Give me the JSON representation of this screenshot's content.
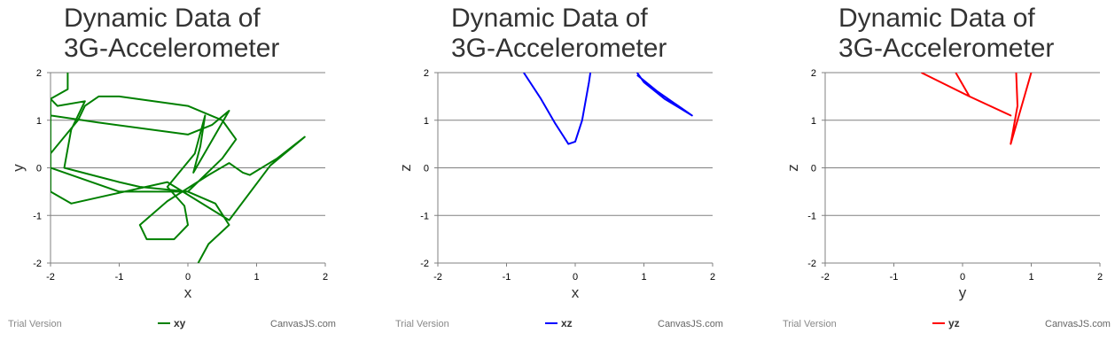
{
  "chart_data": [
    {
      "type": "line",
      "title": "Dynamic Data of 3G-Accelerometer",
      "title_lines": [
        "Dynamic Data of",
        "3G-Accelerometer"
      ],
      "xlabel": "x",
      "ylabel": "y",
      "xlim": [
        -2,
        2
      ],
      "ylim": [
        -2,
        2
      ],
      "x_ticks": [
        "-2",
        "-1",
        "0",
        "1",
        "2"
      ],
      "y_ticks": [
        "2",
        "1",
        "0",
        "-1",
        "-2"
      ],
      "grid": "horizontal",
      "legend": "bottom",
      "series": [
        {
          "name": "xy",
          "color": "#008000",
          "points": [
            [
              -1.75,
              2.0
            ],
            [
              -1.75,
              1.65
            ],
            [
              -2.0,
              1.45
            ],
            [
              -2.0,
              1.1
            ],
            [
              -1.3,
              0.95
            ],
            [
              0.0,
              0.7
            ],
            [
              0.35,
              0.9
            ],
            [
              0.6,
              1.2
            ],
            [
              0.08,
              -0.1
            ],
            [
              0.18,
              0.45
            ],
            [
              0.25,
              1.1
            ],
            [
              0.1,
              0.3
            ],
            [
              -0.3,
              -0.4
            ],
            [
              -0.05,
              -0.8
            ],
            [
              0.0,
              -1.2
            ],
            [
              -0.2,
              -1.5
            ],
            [
              -0.6,
              -1.5
            ],
            [
              -0.7,
              -1.2
            ],
            [
              -0.3,
              -0.7
            ],
            [
              0.3,
              -0.15
            ],
            [
              0.6,
              0.1
            ],
            [
              0.8,
              -0.1
            ],
            [
              0.9,
              -0.15
            ],
            [
              1.3,
              0.2
            ],
            [
              1.7,
              0.65
            ],
            [
              1.2,
              0.05
            ],
            [
              0.6,
              -1.1
            ],
            [
              -0.3,
              -0.3
            ],
            [
              -1.7,
              -0.75
            ],
            [
              -2.0,
              -0.5
            ],
            [
              -2.0,
              0.3
            ],
            [
              -1.6,
              1.0
            ],
            [
              -1.5,
              1.3
            ],
            [
              -1.3,
              1.5
            ],
            [
              -1.0,
              1.5
            ],
            [
              0.0,
              1.3
            ],
            [
              0.5,
              1.0
            ],
            [
              0.7,
              0.6
            ],
            [
              0.5,
              0.2
            ],
            [
              0.0,
              -0.5
            ],
            [
              -0.7,
              -0.4
            ],
            [
              -1.0,
              -0.3
            ],
            [
              -1.8,
              0.0
            ],
            [
              -1.7,
              0.8
            ],
            [
              -1.5,
              1.4
            ],
            [
              -1.9,
              1.3
            ],
            [
              -2.0,
              1.45
            ],
            [
              -2.0,
              0.0
            ],
            [
              -1.0,
              -0.5
            ],
            [
              0.0,
              -0.5
            ],
            [
              0.4,
              -0.75
            ],
            [
              0.6,
              -1.2
            ],
            [
              0.3,
              -1.6
            ],
            [
              0.15,
              -2.0
            ]
          ]
        }
      ]
    },
    {
      "type": "line",
      "title": "Dynamic Data of 3G-Accelerometer",
      "title_lines": [
        "Dynamic Data of",
        "3G-Accelerometer"
      ],
      "xlabel": "x",
      "ylabel": "z",
      "xlim": [
        -2,
        2
      ],
      "ylim": [
        -2,
        2
      ],
      "x_ticks": [
        "-2",
        "-1",
        "0",
        "1",
        "2"
      ],
      "y_ticks": [
        "2",
        "1",
        "0",
        "-1",
        "-2"
      ],
      "grid": "horizontal",
      "legend": "bottom",
      "series": [
        {
          "name": "xz",
          "color": "#0000ff",
          "points": [
            [
              -0.75,
              2.0
            ],
            [
              -0.5,
              1.45
            ],
            [
              -0.3,
              0.95
            ],
            [
              -0.1,
              0.5
            ],
            [
              0.0,
              0.55
            ],
            [
              0.1,
              1.0
            ],
            [
              0.2,
              1.8
            ],
            [
              0.22,
              2.0
            ],
            [
              null,
              null
            ],
            [
              0.9,
              2.0
            ],
            [
              1.0,
              1.8
            ],
            [
              1.3,
              1.45
            ],
            [
              1.7,
              1.1
            ],
            [
              1.6,
              1.2
            ],
            [
              1.2,
              1.6
            ],
            [
              0.9,
              1.95
            ]
          ]
        }
      ]
    },
    {
      "type": "line",
      "title": "Dynamic Data of 3G-Accelerometer",
      "title_lines": [
        "Dynamic Data of",
        "3G-Accelerometer"
      ],
      "xlabel": "y",
      "ylabel": "z",
      "xlim": [
        -2,
        2
      ],
      "ylim": [
        -2,
        2
      ],
      "x_ticks": [
        "-2",
        "-1",
        "0",
        "1",
        "2"
      ],
      "y_ticks": [
        "2",
        "1",
        "0",
        "-1",
        "-2"
      ],
      "grid": "horizontal",
      "legend": "bottom",
      "series": [
        {
          "name": "yz",
          "color": "#ff0000",
          "points": [
            [
              -0.6,
              2.0
            ],
            [
              0.1,
              1.5
            ],
            [
              0.7,
              1.1
            ],
            [
              0.1,
              1.5
            ],
            [
              -0.1,
              2.0
            ],
            [
              null,
              null
            ],
            [
              1.0,
              2.0
            ],
            [
              0.9,
              1.5
            ],
            [
              0.7,
              0.5
            ],
            [
              0.8,
              1.3
            ],
            [
              0.78,
              2.0
            ]
          ]
        }
      ]
    }
  ],
  "footer": {
    "left": "Trial Version",
    "right": "CanvasJS.com"
  }
}
